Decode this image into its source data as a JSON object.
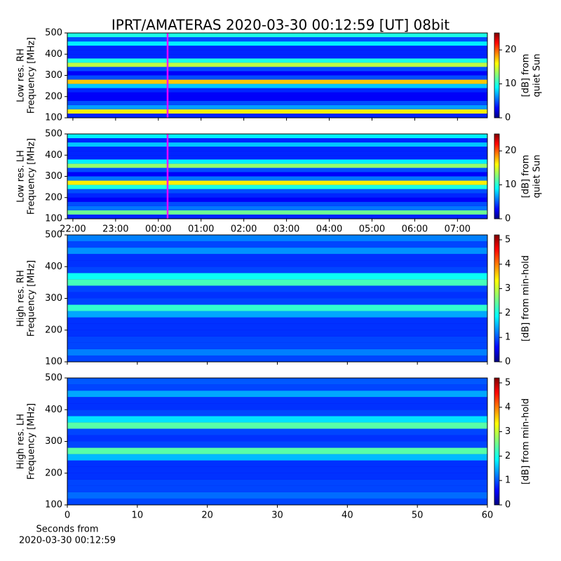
{
  "title": "IPRT/AMATERAS 2020-03-30 00:12:59 [UT]   08bit",
  "chart_data": [
    {
      "type": "heatmap",
      "ylabel": [
        "Low res. RH",
        "Frequency [MHz]"
      ],
      "colormap": "jet",
      "xlim": [
        -2.13,
        7.7
      ],
      "ylim": [
        100,
        500
      ],
      "yticks": [
        100,
        200,
        300,
        400,
        500
      ],
      "xtick_values": [
        -2,
        -1,
        0,
        1,
        2,
        3,
        4,
        5,
        6,
        7
      ],
      "marker_x": 0.2164,
      "marker_color": "#ff00ff",
      "ybins": [
        100,
        120,
        140,
        160,
        180,
        200,
        220,
        240,
        260,
        280,
        300,
        320,
        340,
        360,
        380,
        400,
        420,
        440,
        460,
        480,
        500
      ],
      "values": [
        4,
        16,
        7,
        5,
        3,
        3,
        4,
        8,
        17,
        5,
        3,
        5,
        14,
        10,
        4,
        4,
        4,
        9,
        5,
        10
      ],
      "clim": [
        0,
        25
      ],
      "cticks": [
        0,
        10,
        20
      ],
      "clabel": [
        "[dB] from",
        "quiet Sun"
      ]
    },
    {
      "type": "heatmap",
      "ylabel": [
        "Low res. LH",
        "Frequency [MHz]"
      ],
      "colormap": "jet",
      "xlim": [
        -2.13,
        7.7
      ],
      "ylim": [
        100,
        500
      ],
      "yticks": [
        100,
        200,
        300,
        400,
        500
      ],
      "xticks": [
        {
          "value": -2,
          "label": "22:00"
        },
        {
          "value": -1,
          "label": "23:00"
        },
        {
          "value": 0,
          "label": "00:00"
        },
        {
          "value": 1,
          "label": "01:00"
        },
        {
          "value": 2,
          "label": "02:00"
        },
        {
          "value": 3,
          "label": "03:00"
        },
        {
          "value": 4,
          "label": "04:00"
        },
        {
          "value": 5,
          "label": "05:00"
        },
        {
          "value": 6,
          "label": "06:00"
        },
        {
          "value": 7,
          "label": "07:00"
        }
      ],
      "marker_x": 0.2164,
      "marker_color": "#ff00ff",
      "ybins": [
        100,
        120,
        140,
        160,
        180,
        200,
        220,
        240,
        260,
        280,
        300,
        320,
        340,
        360,
        380,
        400,
        420,
        440,
        460,
        480,
        500
      ],
      "values": [
        4,
        12,
        6,
        5,
        3,
        4,
        5,
        10,
        16,
        6,
        3,
        5,
        13,
        9,
        4,
        4,
        4,
        8,
        4,
        9
      ],
      "clim": [
        0,
        25
      ],
      "cticks": [
        0,
        10,
        20
      ],
      "clabel": [
        "[dB] from",
        "quiet Sun"
      ]
    },
    {
      "type": "heatmap",
      "ylabel": [
        "High res. RH",
        "Frequency [MHz]"
      ],
      "colormap": "jet",
      "xlim": [
        0,
        60
      ],
      "ylim": [
        100,
        500
      ],
      "yticks": [
        100,
        200,
        300,
        400,
        500
      ],
      "xtick_values": [
        0,
        10,
        20,
        30,
        40,
        50,
        60
      ],
      "ybins": [
        100,
        120,
        140,
        160,
        180,
        200,
        220,
        240,
        260,
        280,
        300,
        320,
        340,
        360,
        380,
        400,
        420,
        440,
        460,
        480,
        500
      ],
      "values": [
        1,
        1.3,
        1,
        1,
        0.9,
        0.9,
        0.9,
        1.5,
        2.2,
        1,
        0.9,
        1,
        2.3,
        2,
        1,
        0.9,
        0.9,
        1.4,
        1,
        1.3
      ],
      "clim": [
        0,
        5.2
      ],
      "cticks": [
        0,
        1,
        2,
        3,
        4,
        5
      ],
      "clabel": [
        "[dB] from min-hold"
      ]
    },
    {
      "type": "heatmap",
      "ylabel": [
        "High res. LH",
        "Frequency [MHz]"
      ],
      "colormap": "jet",
      "xlim": [
        0,
        60
      ],
      "ylim": [
        100,
        500
      ],
      "yticks": [
        100,
        200,
        300,
        400,
        500
      ],
      "xticks": [
        0,
        10,
        20,
        30,
        40,
        50,
        60
      ],
      "xlabel": [
        "Seconds from",
        "2020-03-30 00:12:59"
      ],
      "ybins": [
        100,
        120,
        140,
        160,
        180,
        200,
        220,
        240,
        260,
        280,
        300,
        320,
        340,
        360,
        380,
        400,
        420,
        440,
        460,
        480,
        500
      ],
      "values": [
        1,
        1.2,
        1,
        1,
        0.9,
        0.9,
        0.9,
        1.6,
        2.4,
        1,
        0.9,
        1,
        2.4,
        1.8,
        1,
        0.9,
        0.9,
        1.5,
        1,
        1.1
      ],
      "clim": [
        0,
        5.2
      ],
      "cticks": [
        0,
        1,
        2,
        3,
        4,
        5
      ],
      "clabel": [
        "[dB] from min-hold"
      ]
    }
  ]
}
